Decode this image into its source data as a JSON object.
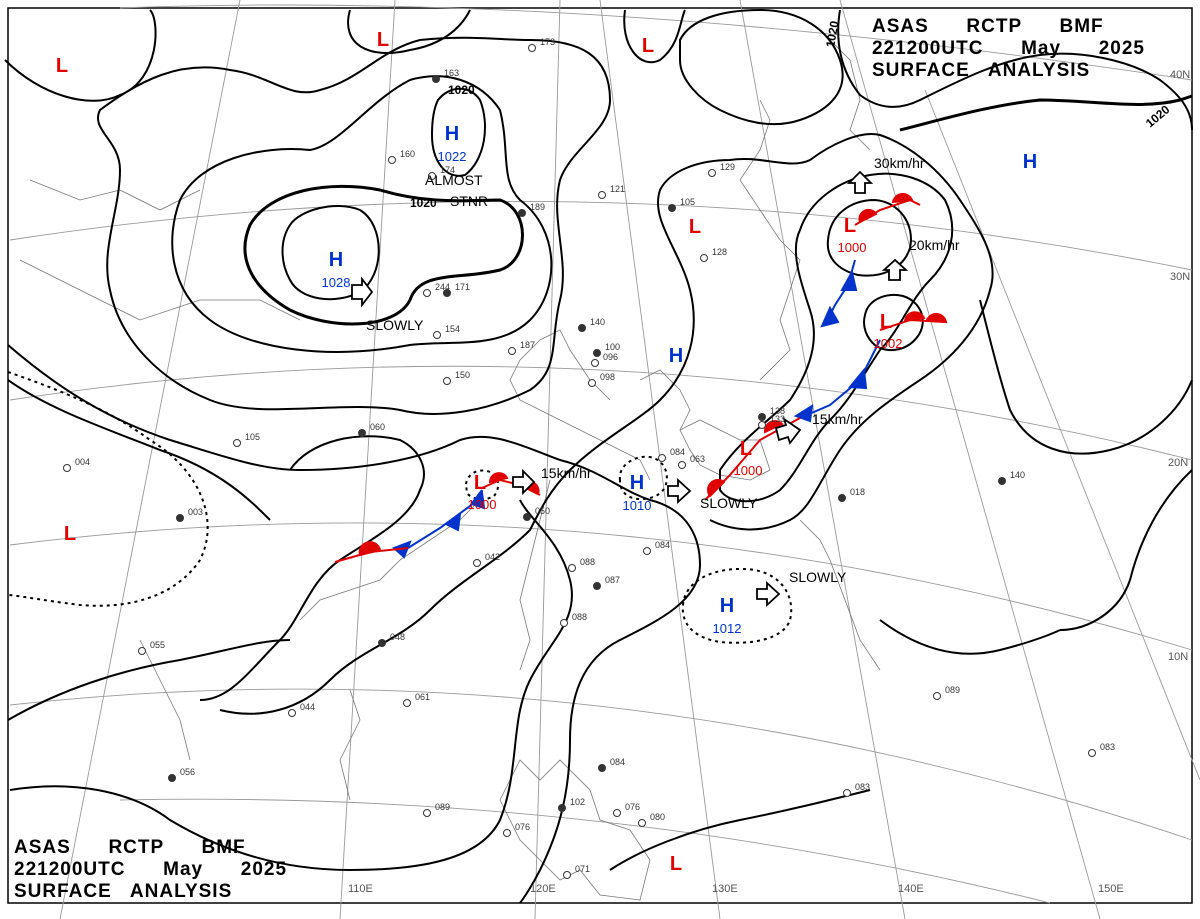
{
  "title": {
    "agency_line": "ASAS      RCTP      BMF",
    "time_line": "221200UTC      May      2025",
    "name_line": "SURFACE   ANALYSIS"
  },
  "longitudes": [
    "110E",
    "120E",
    "130E",
    "140E",
    "150E"
  ],
  "latitudes": [
    "40N",
    "30N",
    "20N",
    "10N"
  ],
  "isobar_labels": [
    "1020",
    "1020",
    "1020",
    "1020"
  ],
  "centers": {
    "highs": [
      {
        "symbol": "H",
        "pressure": "1022"
      },
      {
        "symbol": "H",
        "pressure": "1028"
      },
      {
        "symbol": "H",
        "pressure": ""
      },
      {
        "symbol": "H",
        "pressure": "1010"
      },
      {
        "symbol": "H",
        "pressure": "1012"
      },
      {
        "symbol": "H",
        "pressure": ""
      }
    ],
    "lows": [
      {
        "symbol": "L",
        "pressure": "1000"
      },
      {
        "symbol": "L",
        "pressure": "1002"
      },
      {
        "symbol": "L",
        "pressure": "1000"
      },
      {
        "symbol": "L",
        "pressure": "1000"
      },
      {
        "symbol": "L",
        "pressure": ""
      },
      {
        "symbol": "L",
        "pressure": ""
      },
      {
        "symbol": "L",
        "pressure": ""
      },
      {
        "symbol": "L",
        "pressure": ""
      },
      {
        "symbol": "L",
        "pressure": ""
      },
      {
        "symbol": "L",
        "pressure": ""
      }
    ]
  },
  "motion_labels": {
    "almost": "ALMOST",
    "stnr": "STNR",
    "slowly_a": "SLOWLY",
    "slowly_b": "SLOWLY",
    "slowly_c": "SLOWLY",
    "speed_30": "30km/hr",
    "speed_20": "20km/hr",
    "speed_15a": "15km/hr",
    "speed_15b": "15km/hr"
  },
  "station_labels": [
    "163",
    "160",
    "174",
    "189",
    "121",
    "129",
    "105",
    "128",
    "244",
    "171",
    "154",
    "150",
    "140",
    "187",
    "096",
    "060",
    "105",
    "042",
    "050",
    "088",
    "084",
    "087",
    "088",
    "055",
    "048",
    "061",
    "044",
    "056",
    "089",
    "076",
    "102",
    "076",
    "080",
    "084",
    "083",
    "071",
    "140",
    "083",
    "089",
    "018",
    "063",
    "084",
    "100",
    "098",
    "133",
    "138",
    "173",
    "004",
    "003"
  ],
  "colors": {
    "high": "#0033cc",
    "low": "#e00000",
    "cold_front": "#0033cc",
    "warm_front": "#e00000",
    "isobar": "#000000",
    "grid": "#888888"
  }
}
